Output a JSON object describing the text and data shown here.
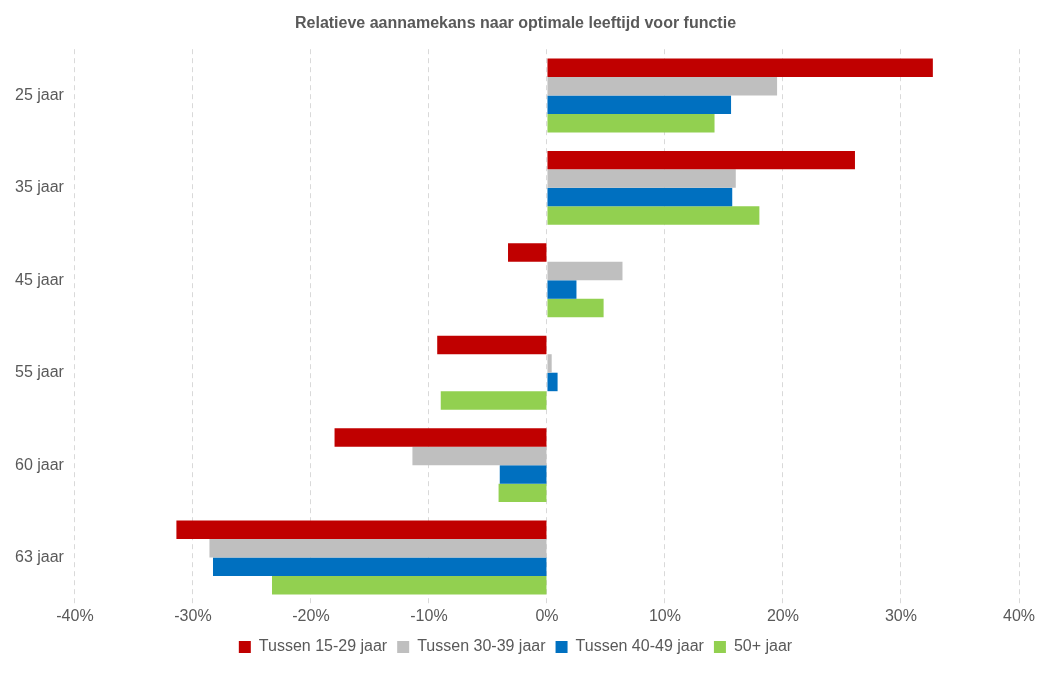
{
  "chart_data": {
    "type": "bar",
    "orientation": "horizontal",
    "title": "Relatieve aannamekans naar optimale leeftijd voor functie",
    "categories": [
      "25 jaar",
      "35 jaar",
      "45 jaar",
      "55 jaar",
      "60 jaar",
      "63 jaar"
    ],
    "series": [
      {
        "name": "Tussen 15-29 jaar",
        "color": "#c00000",
        "values": [
          32.7,
          26.1,
          -3.3,
          -9.3,
          -18.0,
          -31.4
        ]
      },
      {
        "name": "Tussen 30-39 jaar",
        "color": "#bfbfbf",
        "values": [
          19.5,
          16.0,
          6.4,
          0.4,
          -11.4,
          -28.6
        ]
      },
      {
        "name": "Tussen 40-49 jaar",
        "color": "#0070c0",
        "values": [
          15.6,
          15.7,
          2.5,
          0.9,
          -4.0,
          -28.3
        ]
      },
      {
        "name": "50+ jaar",
        "color": "#92d050",
        "values": [
          14.2,
          18.0,
          4.8,
          -9.0,
          -4.1,
          -23.3
        ]
      }
    ],
    "xlim": [
      -40,
      40
    ],
    "xticks": [
      {
        "value": -40,
        "label": "-40%"
      },
      {
        "value": -30,
        "label": "-30%"
      },
      {
        "value": -20,
        "label": "-20%"
      },
      {
        "value": -10,
        "label": "-10%"
      },
      {
        "value": 0,
        "label": "0%"
      },
      {
        "value": 10,
        "label": "10%"
      },
      {
        "value": 20,
        "label": "20%"
      },
      {
        "value": 30,
        "label": "30%"
      },
      {
        "value": 40,
        "label": "40%"
      }
    ],
    "grid": "x",
    "legend": "bottom"
  }
}
